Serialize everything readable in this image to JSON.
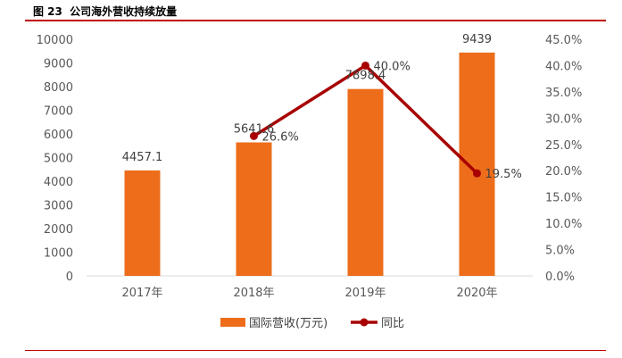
{
  "figure": {
    "number": "图 23",
    "caption": "公司海外营收持续放量"
  },
  "colors": {
    "bar": "#ed6d1b",
    "line": "#a80000",
    "rule": "#c00000",
    "axis": "#d9d9d9"
  },
  "chart_data": {
    "type": "bar+line",
    "categories": [
      "2017年",
      "2018年",
      "2019年",
      "2020年"
    ],
    "series": [
      {
        "name": "国际营收(万元)",
        "type": "bar",
        "axis": "left",
        "values": [
          4457.1,
          5641.6,
          7898.4,
          9439
        ],
        "labels": [
          "4457.1",
          "5641.6",
          "7898.4",
          "9439"
        ]
      },
      {
        "name": "同比",
        "type": "line",
        "axis": "right",
        "values": [
          null,
          26.6,
          40.0,
          19.5
        ],
        "labels": [
          "",
          "26.6%",
          "40.0%",
          "19.5%"
        ]
      }
    ],
    "y_left": {
      "range": [
        0,
        10000
      ],
      "ticks": [
        "0",
        "1000",
        "2000",
        "3000",
        "4000",
        "5000",
        "6000",
        "7000",
        "8000",
        "9000",
        "10000"
      ]
    },
    "y_right": {
      "range": [
        0,
        45
      ],
      "ticks": [
        "0.0%",
        "5.0%",
        "10.0%",
        "15.0%",
        "20.0%",
        "25.0%",
        "30.0%",
        "35.0%",
        "40.0%",
        "45.0%"
      ]
    },
    "grid": false,
    "legend": "bottom"
  }
}
